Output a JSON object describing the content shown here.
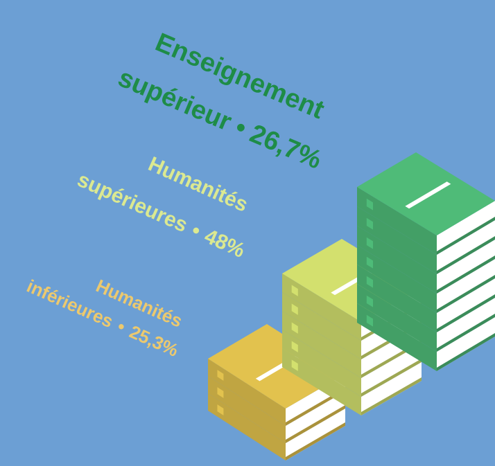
{
  "chart_data": {
    "type": "books",
    "categories": [
      [
        "Humanités",
        "inférieures"
      ],
      [
        "Humanités",
        "supérieures"
      ],
      [
        "Enseignement",
        "supérieur"
      ]
    ],
    "values": [
      25.3,
      48,
      26.7
    ],
    "value_labels": [
      "25,3%",
      "48%",
      "26,7%"
    ],
    "separator": "•",
    "colors": [
      "#e2c24e",
      "#d3e06e",
      "#4fbb78"
    ],
    "text_colors": [
      "#ecc96e",
      "#dbe991",
      "#1e8c47"
    ]
  }
}
